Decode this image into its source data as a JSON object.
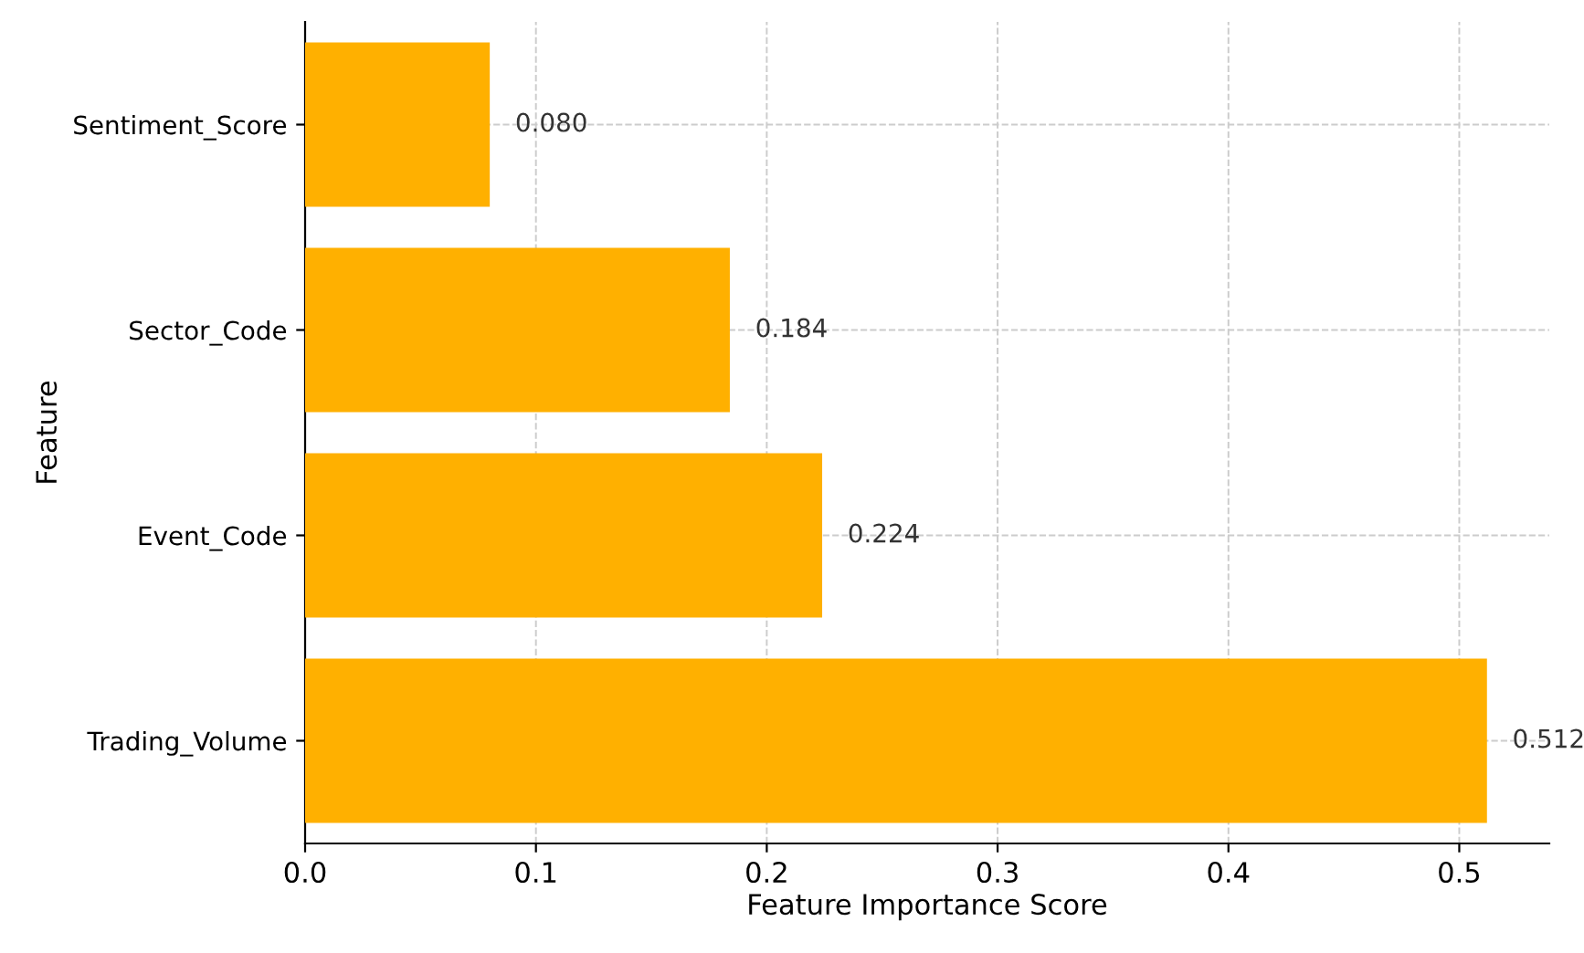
{
  "chart_data": {
    "type": "bar",
    "orientation": "horizontal",
    "xlabel": "Feature Importance Score",
    "ylabel": "Feature",
    "categories": [
      "Sentiment_Score",
      "Sector_Code",
      "Event_Code",
      "Trading_Volume"
    ],
    "values": [
      0.08,
      0.184,
      0.224,
      0.512
    ],
    "value_labels": [
      "0.080",
      "0.184",
      "0.224",
      "0.512"
    ],
    "color": "#ffb000",
    "xlim": [
      0,
      0.539
    ],
    "xticks": [
      {
        "value": 0,
        "label": "0.0"
      },
      0.1,
      0.2,
      0.3,
      0.4,
      0.5
    ],
    "grid": true
  }
}
